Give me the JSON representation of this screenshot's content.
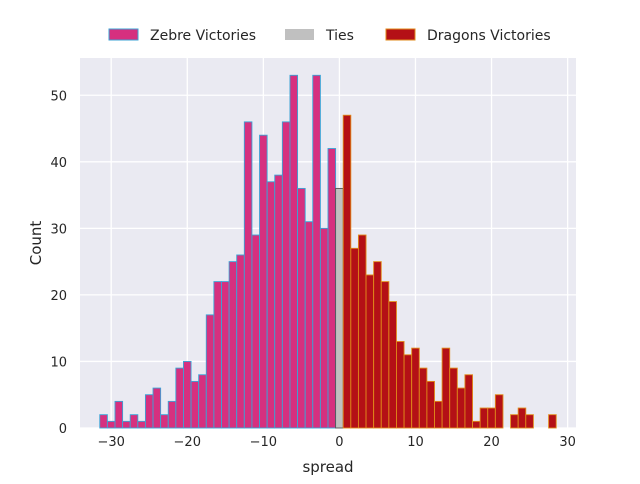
{
  "chart_data": {
    "type": "bar",
    "xlabel": "spread",
    "ylabel": "Count",
    "xlim": [
      -34.1,
      31.1
    ],
    "ylim": [
      0,
      55.6
    ],
    "x_ticks": [
      -30,
      -20,
      -10,
      0,
      10,
      20,
      30
    ],
    "x_tick_labels": [
      "−30",
      "−20",
      "−10",
      "0",
      "10",
      "20",
      "30"
    ],
    "y_ticks": [
      0,
      10,
      20,
      30,
      40,
      50
    ],
    "y_tick_labels": [
      "0",
      "10",
      "20",
      "30",
      "40",
      "50"
    ],
    "grid": true,
    "legend_position": "top-center, above plot",
    "background_color": "#eaeaf2",
    "series": [
      {
        "name": "Zebre Victories",
        "color": "#d6307f",
        "edge_color": "#3ba3d6",
        "x": [
          -31,
          -30,
          -29,
          -28,
          -27,
          -26,
          -25,
          -24,
          -23,
          -22,
          -21,
          -20,
          -19,
          -18,
          -17,
          -16,
          -15,
          -14,
          -13,
          -12,
          -11,
          -10,
          -9,
          -8,
          -7,
          -6,
          -5,
          -4,
          -3,
          -2,
          -1
        ],
        "values": [
          2,
          1,
          4,
          1,
          2,
          1,
          5,
          6,
          2,
          4,
          9,
          10,
          7,
          8,
          17,
          22,
          22,
          25,
          26,
          46,
          29,
          44,
          37,
          38,
          46,
          53,
          36,
          31,
          53,
          30,
          42
        ]
      },
      {
        "name": "Ties",
        "color": "#c0c0c0",
        "edge_color": "#555555",
        "x": [
          0
        ],
        "values": [
          36
        ]
      },
      {
        "name": "Dragons Victories",
        "color": "#b41016",
        "edge_color": "#e08a1a",
        "x": [
          1,
          2,
          3,
          4,
          5,
          6,
          7,
          8,
          9,
          10,
          11,
          12,
          13,
          14,
          15,
          16,
          17,
          18,
          19,
          20,
          21,
          22,
          23,
          24,
          25,
          26,
          27,
          28
        ],
        "values": [
          47,
          27,
          29,
          23,
          25,
          22,
          19,
          13,
          11,
          12,
          9,
          7,
          4,
          12,
          9,
          6,
          8,
          1,
          3,
          3,
          5,
          0,
          2,
          3,
          2,
          0,
          0,
          2
        ]
      }
    ]
  }
}
